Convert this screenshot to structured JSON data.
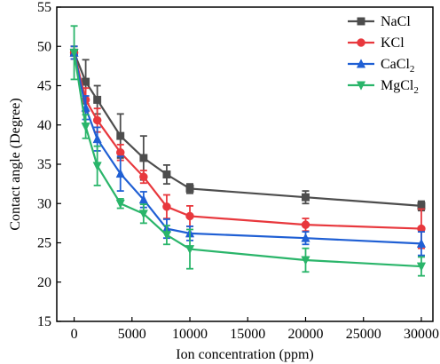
{
  "chart_data": {
    "type": "line",
    "xlabel": "Ion concentration (ppm)",
    "ylabel": "Contact angle (Degree)",
    "xlim": [
      -1500,
      31000
    ],
    "ylim": [
      15,
      55
    ],
    "xticks": [
      0,
      5000,
      10000,
      15000,
      20000,
      25000,
      30000
    ],
    "yticks": [
      15,
      20,
      25,
      30,
      35,
      40,
      45,
      50,
      55
    ],
    "x": [
      0,
      1000,
      2000,
      4000,
      6000,
      8000,
      10000,
      20000,
      30000
    ],
    "legend_position": "top-right",
    "series": [
      {
        "name": "NaCl",
        "legend_main": "NaCl",
        "legend_sub": "",
        "color": "#4d4d4d",
        "marker": "square",
        "values": [
          49.2,
          45.5,
          43.2,
          38.6,
          35.8,
          33.7,
          31.9,
          30.8,
          29.7
        ],
        "errors": [
          0.8,
          2.8,
          1.8,
          2.8,
          2.8,
          1.2,
          0.6,
          0.8,
          0.6
        ]
      },
      {
        "name": "KCl",
        "legend_main": "KCl",
        "legend_sub": "",
        "color": "#e8383d",
        "marker": "circle",
        "values": [
          49.2,
          43.2,
          40.6,
          36.5,
          33.4,
          29.6,
          28.4,
          27.3,
          26.8
        ],
        "errors": [
          0.8,
          1.5,
          1.5,
          1.0,
          0.8,
          1.5,
          1.3,
          0.8,
          2.5
        ]
      },
      {
        "name": "CaCl2",
        "legend_main": "CaCl",
        "legend_sub": "2",
        "color": "#1f5fd4",
        "marker": "triangle-up",
        "values": [
          49.2,
          42.2,
          38.2,
          33.8,
          30.5,
          26.8,
          26.2,
          25.6,
          24.9
        ],
        "errors": [
          0.8,
          1.5,
          1.5,
          2.2,
          1.0,
          1.2,
          0.9,
          0.8,
          1.5
        ]
      },
      {
        "name": "MgCl2",
        "legend_main": "MgCl",
        "legend_sub": "2",
        "color": "#2ab56a",
        "marker": "triangle-down",
        "values": [
          49.2,
          39.8,
          34.8,
          30.0,
          28.7,
          26.0,
          24.2,
          22.8,
          22.0
        ],
        "errors": [
          3.4,
          1.5,
          2.5,
          0.6,
          1.2,
          1.2,
          2.5,
          1.5,
          1.2
        ]
      }
    ]
  }
}
